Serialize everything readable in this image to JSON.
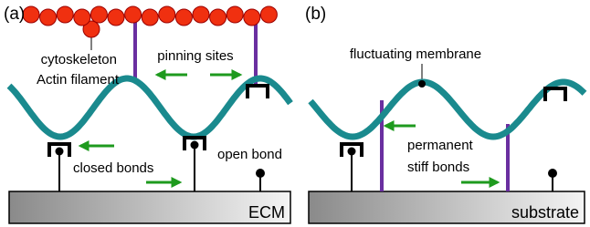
{
  "panels": [
    {
      "label": "(a)",
      "cytoskeleton": "cytoskeleton",
      "actin": "Actin filament",
      "pinning": "pinning sites",
      "closed": "closed bonds",
      "open": "open bond",
      "base": "ECM"
    },
    {
      "label": "(b)",
      "membrane": "fluctuating membrane",
      "bonds": [
        "permanent",
        "stiff bonds"
      ],
      "base": "substrate"
    }
  ]
}
